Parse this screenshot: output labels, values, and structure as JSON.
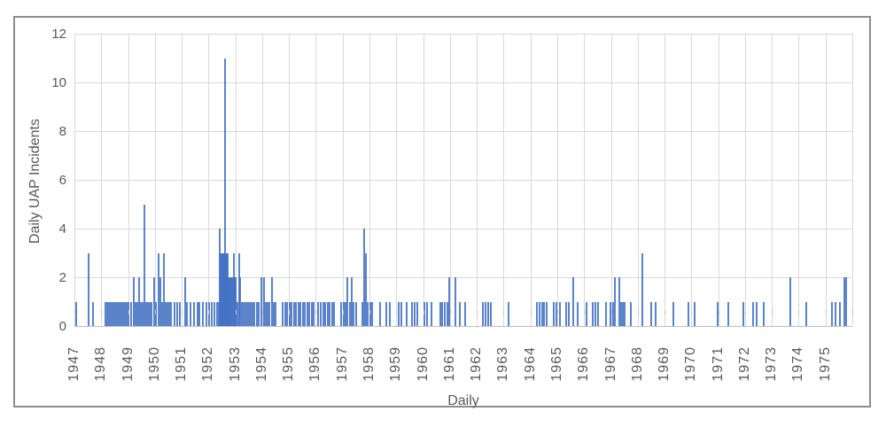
{
  "colors": {
    "bar": "#4472C4",
    "gridline": "#d9d9d9",
    "axis_line": "#bfbfbf",
    "label_text": "#595959",
    "frame_border": "#8c8c8c"
  },
  "chart_data": {
    "type": "bar",
    "title": "",
    "xlabel": "Daily",
    "ylabel": "Daily UAP Incidents",
    "x_range": [
      1947,
      1976
    ],
    "x_tick_labels": [
      "1947",
      "1948",
      "1949",
      "1950",
      "1951",
      "1952",
      "1953",
      "1954",
      "1955",
      "1956",
      "1957",
      "1958",
      "1959",
      "1960",
      "1961",
      "1962",
      "1963",
      "1964",
      "1965",
      "1966",
      "1967",
      "1968",
      "1969",
      "1970",
      "1971",
      "1972",
      "1973",
      "1974",
      "1975"
    ],
    "y_ticks": [
      0,
      2,
      4,
      6,
      8,
      10,
      12
    ],
    "ylim": [
      0,
      12
    ],
    "grid": true,
    "legend": false,
    "points_format": "[year_fraction, daily_incident_count, optional_bar_px_width]",
    "points": [
      [
        1947.07,
        1
      ],
      [
        1947.53,
        3
      ],
      [
        1947.69,
        1
      ],
      [
        1948.16,
        1
      ],
      [
        1948.22,
        1
      ],
      [
        1948.29,
        1
      ],
      [
        1948.36,
        1
      ],
      [
        1948.42,
        1
      ],
      [
        1948.49,
        1
      ],
      [
        1948.56,
        1
      ],
      [
        1948.62,
        1
      ],
      [
        1948.69,
        1
      ],
      [
        1948.76,
        1
      ],
      [
        1948.82,
        1
      ],
      [
        1948.89,
        1
      ],
      [
        1948.96,
        1
      ],
      [
        1949.03,
        1
      ],
      [
        1949.1,
        1
      ],
      [
        1949.21,
        2
      ],
      [
        1949.28,
        1
      ],
      [
        1949.34,
        1
      ],
      [
        1949.41,
        2
      ],
      [
        1949.48,
        1
      ],
      [
        1949.54,
        1
      ],
      [
        1949.61,
        5
      ],
      [
        1949.68,
        1
      ],
      [
        1949.74,
        1
      ],
      [
        1949.81,
        1
      ],
      [
        1949.88,
        1
      ],
      [
        1949.97,
        2
      ],
      [
        1950.04,
        1
      ],
      [
        1950.14,
        3
      ],
      [
        1950.21,
        2
      ],
      [
        1950.27,
        1
      ],
      [
        1950.34,
        3
      ],
      [
        1950.41,
        1
      ],
      [
        1950.48,
        1
      ],
      [
        1950.54,
        1
      ],
      [
        1950.61,
        1
      ],
      [
        1950.74,
        1
      ],
      [
        1950.84,
        1
      ],
      [
        1950.94,
        1
      ],
      [
        1951.13,
        2
      ],
      [
        1951.2,
        1
      ],
      [
        1951.33,
        1
      ],
      [
        1951.46,
        1
      ],
      [
        1951.59,
        1
      ],
      [
        1951.66,
        1
      ],
      [
        1951.79,
        1
      ],
      [
        1951.92,
        1
      ],
      [
        1952.02,
        1
      ],
      [
        1952.12,
        1
      ],
      [
        1952.22,
        1
      ],
      [
        1952.32,
        1
      ],
      [
        1952.38,
        1
      ],
      [
        1952.42,
        4
      ],
      [
        1952.45,
        3,
        3
      ],
      [
        1952.48,
        3,
        3
      ],
      [
        1952.52,
        3,
        3
      ],
      [
        1952.55,
        3,
        3
      ],
      [
        1952.58,
        3,
        3
      ],
      [
        1952.61,
        11
      ],
      [
        1952.65,
        3,
        3
      ],
      [
        1952.68,
        3,
        3
      ],
      [
        1952.71,
        3,
        3
      ],
      [
        1952.75,
        2,
        3
      ],
      [
        1952.78,
        2,
        3
      ],
      [
        1952.81,
        2,
        3
      ],
      [
        1952.85,
        2,
        3
      ],
      [
        1952.88,
        2,
        3
      ],
      [
        1952.94,
        3
      ],
      [
        1952.98,
        2,
        3
      ],
      [
        1953.01,
        2,
        3
      ],
      [
        1953.08,
        1
      ],
      [
        1953.14,
        3
      ],
      [
        1953.18,
        2
      ],
      [
        1953.24,
        1
      ],
      [
        1953.31,
        1
      ],
      [
        1953.38,
        1
      ],
      [
        1953.44,
        1
      ],
      [
        1953.51,
        1
      ],
      [
        1953.58,
        1
      ],
      [
        1953.64,
        1
      ],
      [
        1953.71,
        1
      ],
      [
        1953.81,
        1
      ],
      [
        1953.88,
        1
      ],
      [
        1953.97,
        2
      ],
      [
        1954.07,
        2
      ],
      [
        1954.14,
        1
      ],
      [
        1954.2,
        1
      ],
      [
        1954.27,
        1
      ],
      [
        1954.37,
        2
      ],
      [
        1954.44,
        1
      ],
      [
        1954.5,
        1
      ],
      [
        1954.76,
        1
      ],
      [
        1954.86,
        1
      ],
      [
        1954.93,
        1
      ],
      [
        1955.03,
        1
      ],
      [
        1955.09,
        1
      ],
      [
        1955.19,
        1
      ],
      [
        1955.26,
        1
      ],
      [
        1955.36,
        1
      ],
      [
        1955.42,
        1
      ],
      [
        1955.52,
        1
      ],
      [
        1955.59,
        1
      ],
      [
        1955.69,
        1
      ],
      [
        1955.75,
        1
      ],
      [
        1955.85,
        1
      ],
      [
        1955.92,
        1
      ],
      [
        1956.08,
        1
      ],
      [
        1956.18,
        1
      ],
      [
        1956.28,
        1
      ],
      [
        1956.35,
        1
      ],
      [
        1956.45,
        1
      ],
      [
        1956.51,
        1
      ],
      [
        1956.61,
        1
      ],
      [
        1956.68,
        1
      ],
      [
        1956.94,
        1
      ],
      [
        1957.04,
        1
      ],
      [
        1957.11,
        1
      ],
      [
        1957.17,
        2
      ],
      [
        1957.27,
        1
      ],
      [
        1957.34,
        2
      ],
      [
        1957.4,
        1
      ],
      [
        1957.5,
        1
      ],
      [
        1957.74,
        1
      ],
      [
        1957.8,
        4
      ],
      [
        1957.87,
        3
      ],
      [
        1957.93,
        1
      ],
      [
        1958.03,
        1
      ],
      [
        1958.1,
        1
      ],
      [
        1958.39,
        1
      ],
      [
        1958.63,
        1
      ],
      [
        1958.76,
        1
      ],
      [
        1959.09,
        1
      ],
      [
        1959.19,
        1
      ],
      [
        1959.38,
        1
      ],
      [
        1959.58,
        1
      ],
      [
        1959.68,
        1
      ],
      [
        1959.78,
        1
      ],
      [
        1960.05,
        1
      ],
      [
        1960.14,
        1
      ],
      [
        1960.31,
        1
      ],
      [
        1960.64,
        1
      ],
      [
        1960.7,
        1
      ],
      [
        1960.8,
        1
      ],
      [
        1960.9,
        1
      ],
      [
        1960.97,
        2
      ],
      [
        1961.2,
        2
      ],
      [
        1961.37,
        1
      ],
      [
        1961.56,
        1
      ],
      [
        1962.23,
        1
      ],
      [
        1962.33,
        1
      ],
      [
        1962.43,
        1
      ],
      [
        1962.53,
        1
      ],
      [
        1963.19,
        1
      ],
      [
        1964.24,
        1
      ],
      [
        1964.34,
        1
      ],
      [
        1964.44,
        1
      ],
      [
        1964.51,
        1
      ],
      [
        1964.61,
        1
      ],
      [
        1964.87,
        1
      ],
      [
        1964.97,
        1
      ],
      [
        1965.1,
        1
      ],
      [
        1965.33,
        1
      ],
      [
        1965.43,
        1
      ],
      [
        1965.6,
        2
      ],
      [
        1965.76,
        1
      ],
      [
        1966.09,
        1
      ],
      [
        1966.32,
        1
      ],
      [
        1966.42,
        1
      ],
      [
        1966.52,
        1
      ],
      [
        1966.82,
        1
      ],
      [
        1966.99,
        1
      ],
      [
        1967.08,
        1
      ],
      [
        1967.15,
        2
      ],
      [
        1967.32,
        2
      ],
      [
        1967.38,
        1
      ],
      [
        1967.45,
        1
      ],
      [
        1967.51,
        1
      ],
      [
        1967.74,
        1
      ],
      [
        1968.17,
        3
      ],
      [
        1968.5,
        1
      ],
      [
        1968.66,
        1
      ],
      [
        1969.33,
        1
      ],
      [
        1969.89,
        1
      ],
      [
        1970.12,
        1
      ],
      [
        1970.98,
        1
      ],
      [
        1971.38,
        1
      ],
      [
        1971.94,
        1
      ],
      [
        1972.3,
        1
      ],
      [
        1972.43,
        1
      ],
      [
        1972.7,
        1
      ],
      [
        1973.69,
        2
      ],
      [
        1974.28,
        1
      ],
      [
        1975.24,
        1
      ],
      [
        1975.37,
        1
      ],
      [
        1975.54,
        1
      ],
      [
        1975.74,
        2,
        4
      ]
    ]
  }
}
